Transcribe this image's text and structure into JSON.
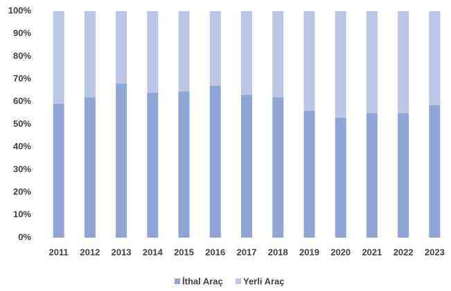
{
  "chart_data": {
    "type": "stacked_bar",
    "categories": [
      "2011",
      "2012",
      "2013",
      "2014",
      "2015",
      "2016",
      "2017",
      "2018",
      "2019",
      "2020",
      "2021",
      "2022",
      "2023"
    ],
    "series": [
      {
        "name": "İthal Araç",
        "color": "#8fa5d6",
        "values": [
          59,
          62,
          68,
          64,
          64.5,
          67,
          63,
          62,
          56,
          53,
          55,
          55,
          58.5
        ]
      },
      {
        "name": "Yerli Araç",
        "color": "#bcc5e6",
        "values": [
          41,
          38,
          32,
          36,
          35.5,
          33,
          37,
          38,
          44,
          47,
          45,
          45,
          41.5
        ]
      }
    ],
    "ylim": [
      0,
      100
    ],
    "yticks": [
      {
        "value": 0,
        "label": "0%"
      },
      {
        "value": 10,
        "label": "10%"
      },
      {
        "value": 20,
        "label": "20%"
      },
      {
        "value": 30,
        "label": "30%"
      },
      {
        "value": 40,
        "label": "40%"
      },
      {
        "value": 50,
        "label": "50%"
      },
      {
        "value": 60,
        "label": "60%"
      },
      {
        "value": 70,
        "label": "70%"
      },
      {
        "value": 80,
        "label": "80%"
      },
      {
        "value": 90,
        "label": "90%"
      },
      {
        "value": 100,
        "label": "100%"
      }
    ],
    "grid": false,
    "legend": "bottom"
  }
}
